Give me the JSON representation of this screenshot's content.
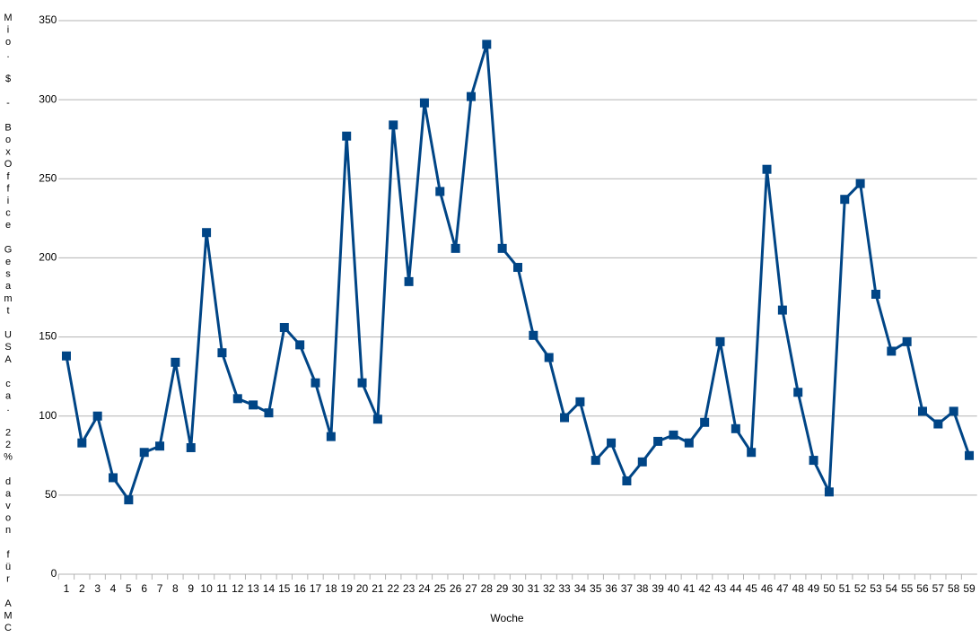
{
  "chart_data": {
    "type": "line",
    "y_label": "Mio. $ - BoxOffice Gesamt USA ca. 22% davon für AMC",
    "x_label": "Woche",
    "categories": [
      "1",
      "2",
      "3",
      "4",
      "5",
      "6",
      "7",
      "8",
      "9",
      "10",
      "11",
      "12",
      "13",
      "14",
      "15",
      "16",
      "17",
      "18",
      "19",
      "20",
      "21",
      "22",
      "23",
      "24",
      "25",
      "26",
      "27",
      "28",
      "29",
      "30",
      "31",
      "32",
      "33",
      "34",
      "35",
      "36",
      "37",
      "38",
      "39",
      "40",
      "41",
      "42",
      "43",
      "44",
      "45",
      "46",
      "47",
      "48",
      "49",
      "50",
      "51",
      "52",
      "53",
      "54",
      "55",
      "56",
      "57",
      "58",
      "59"
    ],
    "series": [
      {
        "color": "#004586",
        "values": [
          138,
          83,
          100,
          61,
          47,
          77,
          81,
          134,
          80,
          216,
          140,
          111,
          107,
          102,
          156,
          145,
          121,
          87,
          277,
          121,
          98,
          284,
          185,
          298,
          242,
          206,
          302,
          335,
          206,
          194,
          151,
          137,
          99,
          109,
          72,
          83,
          59,
          71,
          84,
          88,
          83,
          96,
          147,
          92,
          77,
          256,
          167,
          115,
          72,
          52,
          237,
          247,
          177,
          141,
          147,
          103,
          95,
          103,
          75
        ]
      }
    ],
    "ylim": [
      0,
      350
    ],
    "yticks": [
      0,
      50,
      100,
      150,
      200,
      250,
      300,
      350
    ],
    "grid": true
  }
}
